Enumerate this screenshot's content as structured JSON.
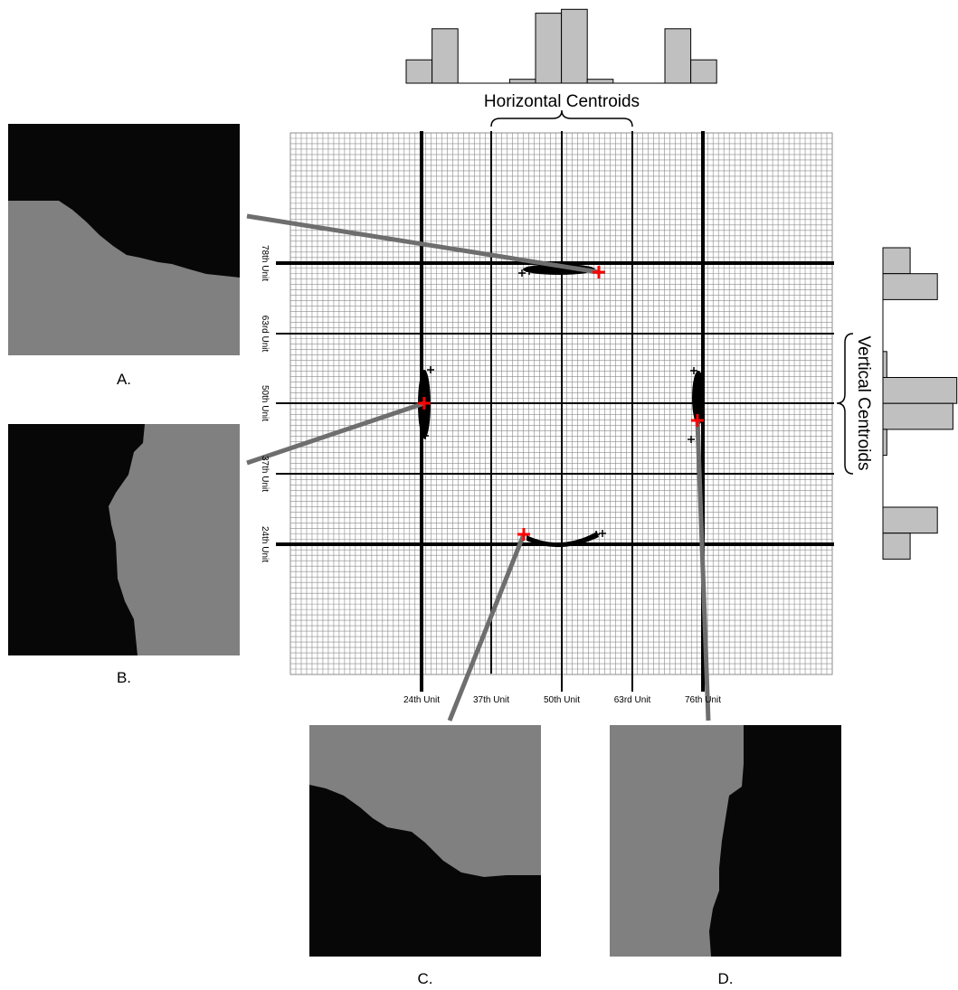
{
  "top_label": "Horizontal Centroids",
  "right_label": "Vertical Centroids",
  "x_axis_labels": [
    "24th Unit",
    "37th Unit",
    "50th Unit",
    "63rd Unit",
    "76th Unit"
  ],
  "y_axis_labels": [
    "78th Unit",
    "63rd Unit",
    "50th Unit",
    "37th Unit",
    "24th Unit"
  ],
  "panels": [
    {
      "id": "A",
      "caption": "A."
    },
    {
      "id": "B",
      "caption": "B."
    },
    {
      "id": "C",
      "caption": "C."
    },
    {
      "id": "D",
      "caption": "D."
    }
  ],
  "colors": {
    "gray_region": "#808080",
    "dark_region": "#070707",
    "hist_bar": "#c0c0c0",
    "marker": "#ff0000",
    "connector": "#6e6e6e"
  },
  "horizontal_histogram": [
    6,
    14,
    0,
    0,
    1,
    18,
    19,
    1,
    0,
    0,
    14,
    6
  ],
  "vertical_histogram": [
    7,
    14,
    0,
    0,
    1,
    19,
    18,
    1,
    0,
    0,
    14,
    7
  ]
}
